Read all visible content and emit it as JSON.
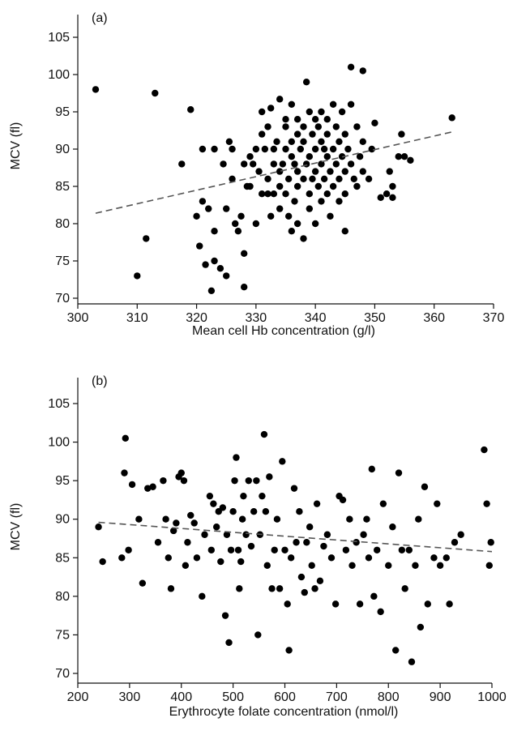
{
  "chart_data": [
    {
      "type": "scatter",
      "panel_label": "(a)",
      "xlabel": "Mean cell Hb concentration (g/l)",
      "ylabel": "MCV (fl)",
      "xlim": [
        300,
        370
      ],
      "ylim": [
        70,
        105
      ],
      "x_ticks": [
        "300",
        "310",
        "320",
        "330",
        "340",
        "350",
        "360",
        "370"
      ],
      "y_ticks": [
        "70",
        "75",
        "80",
        "85",
        "90",
        "95",
        "100",
        "105"
      ],
      "grid": false,
      "trend_line": {
        "style": "dashed",
        "x": [
          303,
          363
        ],
        "y": [
          81.4,
          92.3
        ]
      },
      "points": [
        [
          303,
          98
        ],
        [
          313,
          97.5
        ],
        [
          319,
          95.3
        ],
        [
          317.5,
          88
        ],
        [
          310,
          73
        ],
        [
          311.5,
          78
        ],
        [
          320,
          81
        ],
        [
          321,
          90
        ],
        [
          320.5,
          77
        ],
        [
          321,
          83
        ],
        [
          321.5,
          74.5
        ],
        [
          322,
          82
        ],
        [
          322.5,
          71
        ],
        [
          323,
          75
        ],
        [
          323,
          90
        ],
        [
          323,
          79
        ],
        [
          324,
          74
        ],
        [
          324.5,
          88
        ],
        [
          325,
          73
        ],
        [
          325,
          82
        ],
        [
          325.5,
          91
        ],
        [
          326,
          90
        ],
        [
          326,
          86
        ],
        [
          326.5,
          80
        ],
        [
          327,
          79
        ],
        [
          327.5,
          81
        ],
        [
          328,
          76
        ],
        [
          328,
          71.5
        ],
        [
          328,
          88
        ],
        [
          328.5,
          85
        ],
        [
          329,
          85
        ],
        [
          329,
          89
        ],
        [
          329.5,
          88
        ],
        [
          330,
          80
        ],
        [
          330,
          90
        ],
        [
          330.5,
          87
        ],
        [
          331,
          84
        ],
        [
          331,
          95
        ],
        [
          331,
          92
        ],
        [
          331.5,
          90
        ],
        [
          332,
          86
        ],
        [
          332,
          84
        ],
        [
          332,
          93
        ],
        [
          332.5,
          95.5
        ],
        [
          332.5,
          81
        ],
        [
          333,
          88
        ],
        [
          333,
          84
        ],
        [
          333,
          90
        ],
        [
          333.5,
          91
        ],
        [
          334,
          96.7
        ],
        [
          334,
          87
        ],
        [
          334,
          82
        ],
        [
          334,
          85
        ],
        [
          334.5,
          88
        ],
        [
          335,
          90
        ],
        [
          335,
          94
        ],
        [
          335,
          84
        ],
        [
          335,
          93
        ],
        [
          335.5,
          86
        ],
        [
          335.5,
          81
        ],
        [
          336,
          96
        ],
        [
          336,
          89
        ],
        [
          336,
          79
        ],
        [
          336,
          91
        ],
        [
          336.5,
          88
        ],
        [
          336.5,
          83
        ],
        [
          337,
          92
        ],
        [
          337,
          87
        ],
        [
          337,
          85
        ],
        [
          337,
          94
        ],
        [
          337,
          80
        ],
        [
          337.5,
          90
        ],
        [
          338,
          78
        ],
        [
          338,
          93
        ],
        [
          338,
          86
        ],
        [
          338,
          91
        ],
        [
          338.5,
          99
        ],
        [
          338.5,
          88
        ],
        [
          339,
          84
        ],
        [
          339,
          95
        ],
        [
          339,
          89
        ],
        [
          339,
          82
        ],
        [
          339.5,
          92
        ],
        [
          339.5,
          86
        ],
        [
          340,
          90
        ],
        [
          340,
          94
        ],
        [
          340,
          87
        ],
        [
          340,
          80
        ],
        [
          340.5,
          93
        ],
        [
          340.5,
          85
        ],
        [
          341,
          91
        ],
        [
          341,
          88
        ],
        [
          341,
          95
        ],
        [
          341,
          83
        ],
        [
          341.5,
          90
        ],
        [
          341.5,
          86
        ],
        [
          342,
          94
        ],
        [
          342,
          89
        ],
        [
          342,
          84
        ],
        [
          342,
          92
        ],
        [
          342.5,
          87
        ],
        [
          342.5,
          81
        ],
        [
          343,
          96
        ],
        [
          343,
          90
        ],
        [
          343,
          85
        ],
        [
          343.5,
          93
        ],
        [
          343.5,
          88
        ],
        [
          344,
          91
        ],
        [
          344,
          86
        ],
        [
          344,
          83
        ],
        [
          344.5,
          95
        ],
        [
          344.5,
          89
        ],
        [
          345,
          87
        ],
        [
          345,
          84
        ],
        [
          345,
          92
        ],
        [
          345,
          79
        ],
        [
          345.5,
          90
        ],
        [
          346,
          101
        ],
        [
          346,
          96
        ],
        [
          346,
          88
        ],
        [
          346.5,
          86
        ],
        [
          347,
          93
        ],
        [
          347,
          85
        ],
        [
          347.5,
          89
        ],
        [
          348,
          100.5
        ],
        [
          348,
          87
        ],
        [
          348,
          91
        ],
        [
          349,
          86
        ],
        [
          349.5,
          90
        ],
        [
          350,
          93.5
        ],
        [
          351,
          83.5
        ],
        [
          352,
          84
        ],
        [
          352.5,
          87
        ],
        [
          353,
          83.5
        ],
        [
          353,
          85
        ],
        [
          354,
          89
        ],
        [
          354.5,
          92
        ],
        [
          355,
          89
        ],
        [
          356,
          88.5
        ],
        [
          363,
          94.2
        ]
      ]
    },
    {
      "type": "scatter",
      "panel_label": "(b)",
      "xlabel": "Erythrocyte folate concentration (nmol/l)",
      "ylabel": "MCV (fl)",
      "xlim": [
        200,
        1000
      ],
      "ylim": [
        70,
        105
      ],
      "x_ticks": [
        "200",
        "300",
        "400",
        "500",
        "600",
        "700",
        "800",
        "900",
        "1000"
      ],
      "y_ticks": [
        "70",
        "75",
        "80",
        "85",
        "90",
        "95",
        "100",
        "105"
      ],
      "grid": false,
      "trend_line": {
        "style": "dashed",
        "x": [
          240,
          1000
        ],
        "y": [
          89.6,
          85.8
        ]
      },
      "points": [
        [
          240,
          89
        ],
        [
          248,
          84.5
        ],
        [
          285,
          85
        ],
        [
          290,
          96
        ],
        [
          292,
          100.5
        ],
        [
          298,
          86
        ],
        [
          305,
          94.5
        ],
        [
          318,
          90
        ],
        [
          325,
          81.7
        ],
        [
          335,
          94
        ],
        [
          345,
          94.2
        ],
        [
          355,
          87
        ],
        [
          365,
          95
        ],
        [
          370,
          90
        ],
        [
          375,
          85
        ],
        [
          380,
          81
        ],
        [
          385,
          88.5
        ],
        [
          390,
          89.5
        ],
        [
          395,
          95.5
        ],
        [
          400,
          96
        ],
        [
          405,
          95
        ],
        [
          408,
          84
        ],
        [
          412,
          87
        ],
        [
          418,
          90.5
        ],
        [
          425,
          89.5
        ],
        [
          430,
          85
        ],
        [
          440,
          80
        ],
        [
          445,
          88
        ],
        [
          455,
          93
        ],
        [
          458,
          86
        ],
        [
          462,
          92
        ],
        [
          468,
          89
        ],
        [
          472,
          91
        ],
        [
          476,
          84.5
        ],
        [
          480,
          91.5
        ],
        [
          485,
          77.5
        ],
        [
          488,
          88
        ],
        [
          492,
          74
        ],
        [
          496,
          86
        ],
        [
          500,
          91
        ],
        [
          503,
          95
        ],
        [
          506,
          98
        ],
        [
          510,
          86
        ],
        [
          512,
          81
        ],
        [
          515,
          84.5
        ],
        [
          518,
          90
        ],
        [
          520,
          93
        ],
        [
          525,
          88
        ],
        [
          530,
          95
        ],
        [
          535,
          86.5
        ],
        [
          540,
          91
        ],
        [
          545,
          95
        ],
        [
          548,
          75
        ],
        [
          552,
          88
        ],
        [
          556,
          93
        ],
        [
          560,
          101
        ],
        [
          563,
          91
        ],
        [
          566,
          84
        ],
        [
          570,
          95.5
        ],
        [
          575,
          81
        ],
        [
          580,
          86
        ],
        [
          585,
          90
        ],
        [
          590,
          81
        ],
        [
          595,
          97.5
        ],
        [
          600,
          86
        ],
        [
          605,
          79
        ],
        [
          608,
          73
        ],
        [
          612,
          85
        ],
        [
          618,
          94
        ],
        [
          622,
          87
        ],
        [
          628,
          91
        ],
        [
          632,
          82.5
        ],
        [
          638,
          80.5
        ],
        [
          642,
          87
        ],
        [
          648,
          89
        ],
        [
          652,
          84
        ],
        [
          658,
          81
        ],
        [
          662,
          92
        ],
        [
          668,
          82
        ],
        [
          675,
          86.5
        ],
        [
          682,
          88
        ],
        [
          690,
          85
        ],
        [
          698,
          79
        ],
        [
          705,
          93
        ],
        [
          712,
          92.5
        ],
        [
          718,
          86
        ],
        [
          725,
          90
        ],
        [
          730,
          84
        ],
        [
          738,
          87
        ],
        [
          745,
          79
        ],
        [
          752,
          88
        ],
        [
          758,
          90
        ],
        [
          762,
          85
        ],
        [
          768,
          96.5
        ],
        [
          772,
          80
        ],
        [
          778,
          86
        ],
        [
          785,
          78
        ],
        [
          790,
          92
        ],
        [
          800,
          84
        ],
        [
          808,
          89
        ],
        [
          814,
          73
        ],
        [
          820,
          96
        ],
        [
          826,
          86
        ],
        [
          832,
          81
        ],
        [
          840,
          86
        ],
        [
          845,
          71.5
        ],
        [
          852,
          84
        ],
        [
          858,
          90
        ],
        [
          862,
          76
        ],
        [
          870,
          94.2
        ],
        [
          876,
          79
        ],
        [
          888,
          85
        ],
        [
          894,
          92
        ],
        [
          900,
          84
        ],
        [
          912,
          85
        ],
        [
          918,
          79
        ],
        [
          928,
          87
        ],
        [
          940,
          88
        ],
        [
          985,
          99
        ],
        [
          990,
          92
        ],
        [
          995,
          84
        ],
        [
          998,
          87
        ]
      ]
    }
  ]
}
